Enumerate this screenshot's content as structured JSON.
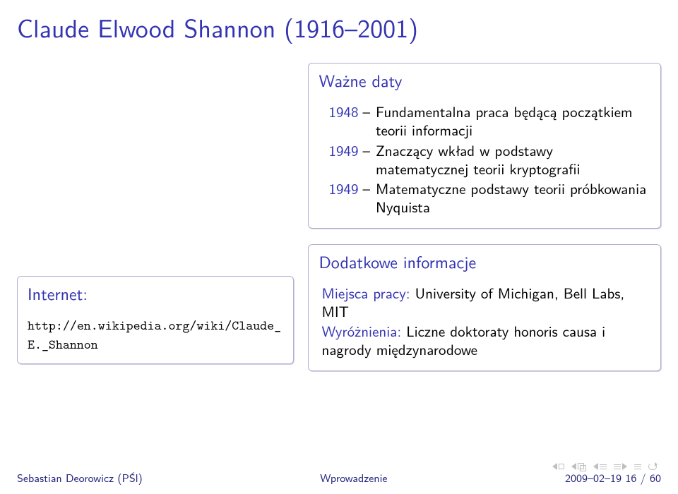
{
  "title": "Claude Elwood Shannon (1916–2001)",
  "internet": {
    "heading": "Internet:",
    "url_line1": "http://en.wikipedia.org/wiki/Claude_",
    "url_line2": "E._Shannon"
  },
  "dates": {
    "heading": "Ważne daty",
    "items": [
      {
        "year": "1948",
        "desc": "Fundamentalna praca będącą początkiem teorii informacji"
      },
      {
        "year": "1949",
        "desc": "Znaczący wkład w podstawy matematycznej teorii kryptografii"
      },
      {
        "year": "1949",
        "desc": "Matematyczne podstawy teorii próbkowania Nyquista"
      }
    ]
  },
  "extra": {
    "heading": "Dodatkowe informacje",
    "rows": [
      {
        "label": "Miejsca pracy:",
        "text": " University of Michigan, Bell Labs, MIT"
      },
      {
        "label": "Wyróżnienia:",
        "text": " Liczne doktoraty honoris causa i nagrody międzynarodowe"
      }
    ]
  },
  "footer": {
    "left": "Sebastian Deorowicz (PŚl)",
    "mid": "Wprowadzenie",
    "right": "2009–02–19    16 / 60"
  },
  "colors": {
    "structure": "#3333b3",
    "text": "#000000",
    "footer": "#20207a",
    "nav": "#bfbfbf",
    "block_border": "#b0b0d0"
  }
}
